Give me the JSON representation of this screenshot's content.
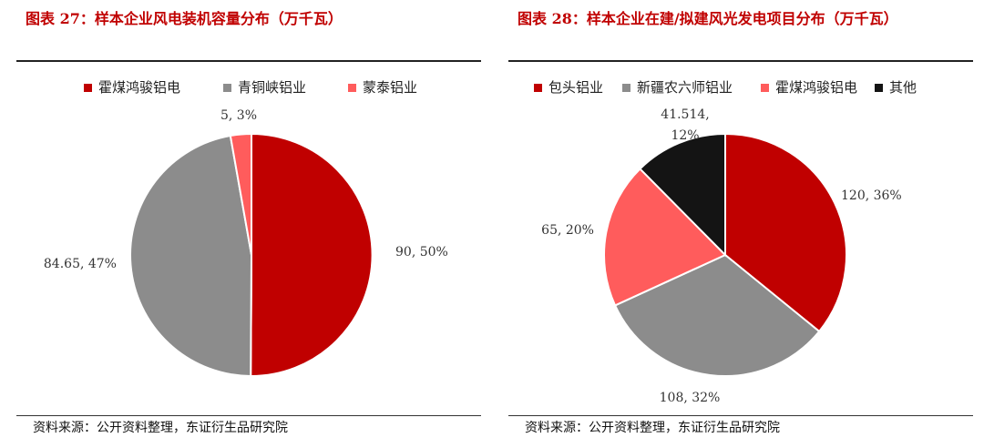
{
  "left": {
    "title": "图表 27：样本企业风电装机容量分布（万千瓦）",
    "source": "资料来源：公开资料整理，东证衍生品研究院"
  },
  "right": {
    "title": "图表 28：样本企业在建/拟建风光发电项目分布（万千瓦）",
    "source": "资料来源：公开资料整理，东证衍生品研究院"
  },
  "chart_data": [
    {
      "type": "pie",
      "title": "图表 27：样本企业风电装机容量分布（万千瓦）",
      "legend_position": "top",
      "slices": [
        {
          "name": "霍煤鸿骏铝电",
          "value": 90,
          "percent": 50,
          "label": "90, 50%",
          "color": "#c00000"
        },
        {
          "name": "青铜峡铝业",
          "value": 84.65,
          "percent": 47,
          "label": "84.65, 47%",
          "color": "#8c8c8c"
        },
        {
          "name": "蒙泰铝业",
          "value": 5,
          "percent": 3,
          "label": "5, 3%",
          "color": "#ff5c5c"
        }
      ]
    },
    {
      "type": "pie",
      "title": "图表 28：样本企业在建/拟建风光发电项目分布（万千瓦）",
      "legend_position": "top",
      "slices": [
        {
          "name": "包头铝业",
          "value": 120,
          "percent": 36,
          "label": "120, 36%",
          "color": "#c00000"
        },
        {
          "name": "新疆农六师铝业",
          "value": 108,
          "percent": 32,
          "label": "108, 32%",
          "color": "#8c8c8c"
        },
        {
          "name": "霍煤鸿骏铝电",
          "value": 65,
          "percent": 20,
          "label": "65, 20%",
          "color": "#ff5c5c"
        },
        {
          "name": "其他",
          "value": 41.514,
          "percent": 12,
          "label": "41.514, 12%",
          "color": "#141414"
        }
      ]
    }
  ]
}
